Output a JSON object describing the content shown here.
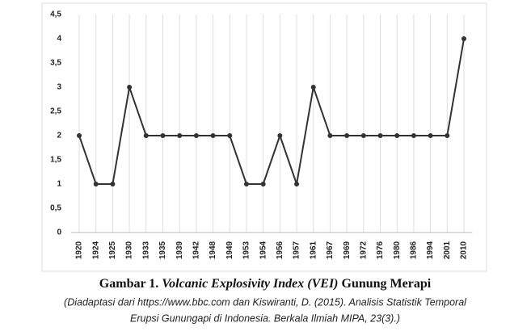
{
  "chart_data": {
    "type": "line",
    "categories": [
      "1920",
      "1924",
      "1925",
      "1930",
      "1933",
      "1935",
      "1939",
      "1942",
      "1948",
      "1949",
      "1953",
      "1954",
      "1956",
      "1957",
      "1961",
      "1967",
      "1969",
      "1972",
      "1976",
      "1980",
      "1986",
      "1994",
      "2001",
      "2010"
    ],
    "values": [
      2,
      1,
      1,
      3,
      2,
      2,
      2,
      2,
      2,
      2,
      1,
      1,
      2,
      1,
      3,
      2,
      2,
      2,
      2,
      2,
      2,
      2,
      2,
      4
    ],
    "color": "#333333",
    "ylim": [
      0,
      4.5
    ],
    "yticks": [
      0,
      {
        "value": 0.5,
        "label": "0,5"
      },
      1,
      {
        "value": 1.5,
        "label": "1,5"
      },
      2,
      {
        "value": 2.5,
        "label": "2,5"
      },
      3,
      {
        "value": 3.5,
        "label": "3,5"
      },
      4,
      {
        "value": 4.5,
        "label": "4,5"
      }
    ],
    "grid": true,
    "caption": {
      "label": "Gambar 1.",
      "title_italic": "Volcanic Explosivity Index (VEI)",
      "title": "Gunung Merapi",
      "source": [
        "(Diadaptasi dari https://www.bbc.com dan Kiswiranti, D. (2015). Analisis Statistik Temporal",
        "Erupsi Gunungapi di Indonesia. Berkala Ilmiah MIPA, 23(3).)"
      ]
    }
  }
}
